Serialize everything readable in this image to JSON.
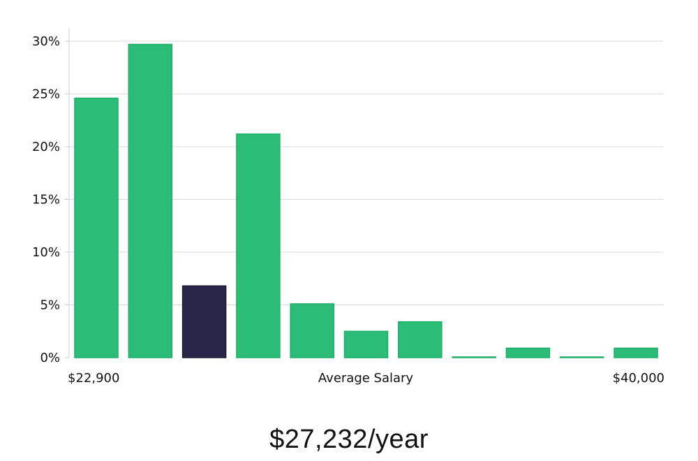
{
  "chart_data": {
    "type": "bar",
    "title": "",
    "xlabel": "Average Salary",
    "ylabel": "",
    "x_range_labels": {
      "min": "$22,900",
      "max": "$40,000"
    },
    "yticks": [
      "0%",
      "5%",
      "10%",
      "15%",
      "20%",
      "25%",
      "30%"
    ],
    "ylim": [
      0,
      31
    ],
    "values": [
      24.6,
      29.7,
      6.8,
      21.2,
      5.1,
      2.5,
      3.4,
      0.05,
      0.9,
      0.05,
      0.9
    ],
    "highlight_index": 2,
    "colors": {
      "bar": "#2bbd77",
      "bar_edge": "#1fae69",
      "highlight": "#29264a",
      "grid": "#d9d9d9",
      "axis": "#cccccc"
    }
  },
  "summary": {
    "salary_text": "$27,232/year"
  }
}
